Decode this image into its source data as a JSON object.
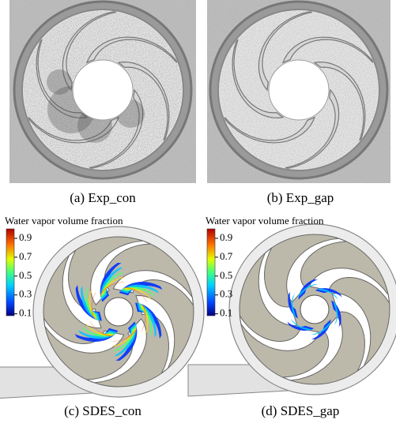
{
  "panels": [
    {
      "caption": "(a) Exp_con"
    },
    {
      "caption": "(b) Exp_gap"
    },
    {
      "caption": "(c) SDES_con"
    },
    {
      "caption": "(d) SDES_gap"
    }
  ],
  "colorbars": [
    {
      "title": "Water vapor volume fraction",
      "lim": [
        0.08,
        1
      ],
      "ticks": [
        0.9,
        0.7,
        0.5,
        0.3,
        0.1
      ]
    },
    {
      "title": "Water vapor volume fraction",
      "lim": [
        0.08,
        1
      ],
      "ticks": [
        0.9,
        0.7,
        0.5,
        0.3,
        0.1
      ]
    }
  ]
}
